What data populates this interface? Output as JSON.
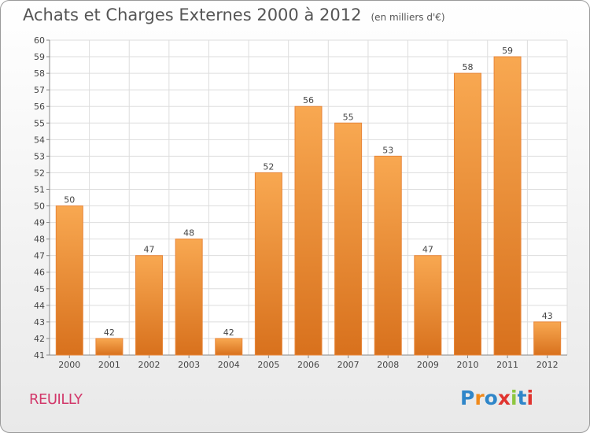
{
  "title": "Achats et Charges Externes 2000 à 2012",
  "unit": "(en milliers d'€)",
  "commune": "REUILLY",
  "logo": {
    "text": "Proxiti",
    "colors": [
      "#2f86c9",
      "#f08a1c",
      "#2f86c9",
      "#e0342f",
      "#8dc63f",
      "#2f86c9",
      "#e0342f"
    ]
  },
  "chart_data": {
    "type": "bar",
    "categories": [
      "2000",
      "2001",
      "2002",
      "2003",
      "2004",
      "2005",
      "2006",
      "2007",
      "2008",
      "2009",
      "2010",
      "2011",
      "2012"
    ],
    "values": [
      50,
      42,
      47,
      48,
      42,
      52,
      56,
      55,
      53,
      47,
      58,
      59,
      43
    ],
    "ylim": [
      41,
      60
    ],
    "yticks": [
      41,
      42,
      43,
      44,
      45,
      46,
      47,
      48,
      49,
      50,
      51,
      52,
      53,
      54,
      55,
      56,
      57,
      58,
      59,
      60
    ],
    "grid": true,
    "bar_color": "#f39a3c"
  }
}
